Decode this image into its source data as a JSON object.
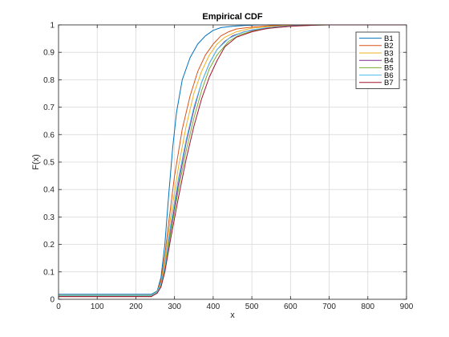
{
  "chart_data": {
    "type": "line",
    "title": "Empirical CDF",
    "xlabel": "x",
    "ylabel": "F(x)",
    "xlim": [
      0,
      900
    ],
    "ylim": [
      0,
      1
    ],
    "xticks": [
      0,
      100,
      200,
      300,
      400,
      500,
      600,
      700,
      800,
      900
    ],
    "yticks": [
      0,
      0.1,
      0.2,
      0.3,
      0.4,
      0.5,
      0.6,
      0.7,
      0.8,
      0.9,
      1
    ],
    "grid": true,
    "legend_position": "top-right",
    "series": [
      {
        "name": "B1",
        "color": "#0072BD",
        "x": [
          0,
          240,
          255,
          265,
          275,
          285,
          295,
          305,
          320,
          340,
          360,
          380,
          400,
          420,
          450,
          480,
          520,
          900
        ],
        "y": [
          0.018,
          0.018,
          0.03,
          0.08,
          0.2,
          0.38,
          0.55,
          0.68,
          0.8,
          0.88,
          0.93,
          0.96,
          0.98,
          0.99,
          0.995,
          0.998,
          1.0,
          1.0
        ]
      },
      {
        "name": "B2",
        "color": "#D95319",
        "x": [
          0,
          240,
          255,
          265,
          275,
          285,
          300,
          320,
          340,
          360,
          380,
          400,
          420,
          440,
          460,
          500,
          550,
          600,
          900
        ],
        "y": [
          0.01,
          0.01,
          0.025,
          0.07,
          0.16,
          0.28,
          0.45,
          0.62,
          0.74,
          0.83,
          0.89,
          0.93,
          0.96,
          0.975,
          0.985,
          0.992,
          0.997,
          1.0,
          1.0
        ]
      },
      {
        "name": "B3",
        "color": "#EDB120",
        "x": [
          0,
          240,
          255,
          265,
          275,
          290,
          310,
          330,
          350,
          370,
          390,
          410,
          430,
          460,
          500,
          550,
          620,
          900
        ],
        "y": [
          0.015,
          0.015,
          0.028,
          0.06,
          0.14,
          0.3,
          0.48,
          0.63,
          0.75,
          0.83,
          0.89,
          0.93,
          0.955,
          0.975,
          0.988,
          0.995,
          1.0,
          1.0
        ]
      },
      {
        "name": "B4",
        "color": "#7E2F8E",
        "x": [
          0,
          240,
          255,
          265,
          275,
          290,
          310,
          330,
          350,
          370,
          390,
          410,
          430,
          450,
          480,
          520,
          560,
          620,
          700,
          900
        ],
        "y": [
          0.012,
          0.012,
          0.025,
          0.055,
          0.12,
          0.25,
          0.42,
          0.57,
          0.69,
          0.79,
          0.86,
          0.91,
          0.94,
          0.96,
          0.975,
          0.985,
          0.993,
          0.998,
          1.0,
          1.0
        ]
      },
      {
        "name": "B5",
        "color": "#77AC30",
        "x": [
          0,
          240,
          255,
          265,
          275,
          290,
          310,
          330,
          350,
          370,
          390,
          410,
          440,
          470,
          510,
          560,
          620,
          700,
          900
        ],
        "y": [
          0.012,
          0.012,
          0.024,
          0.05,
          0.11,
          0.24,
          0.4,
          0.54,
          0.66,
          0.76,
          0.84,
          0.89,
          0.94,
          0.965,
          0.98,
          0.99,
          0.997,
          1.0,
          1.0
        ]
      },
      {
        "name": "B6",
        "color": "#4DBEEE",
        "x": [
          0,
          240,
          255,
          265,
          275,
          290,
          310,
          330,
          350,
          370,
          390,
          410,
          440,
          470,
          500,
          540,
          600,
          680,
          900
        ],
        "y": [
          0.014,
          0.014,
          0.026,
          0.055,
          0.12,
          0.27,
          0.44,
          0.58,
          0.7,
          0.79,
          0.86,
          0.91,
          0.95,
          0.97,
          0.982,
          0.99,
          0.996,
          1.0,
          1.0
        ]
      },
      {
        "name": "B7",
        "color": "#A2142F",
        "x": [
          0,
          240,
          255,
          265,
          275,
          290,
          310,
          330,
          350,
          370,
          390,
          410,
          430,
          460,
          500,
          540,
          600,
          680,
          900
        ],
        "y": [
          0.01,
          0.01,
          0.022,
          0.045,
          0.1,
          0.22,
          0.37,
          0.51,
          0.63,
          0.73,
          0.81,
          0.87,
          0.92,
          0.955,
          0.975,
          0.987,
          0.995,
          1.0,
          1.0
        ]
      }
    ]
  }
}
